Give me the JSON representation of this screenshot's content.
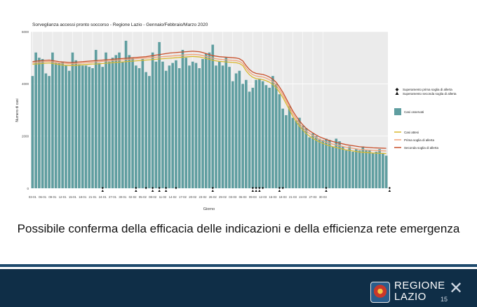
{
  "chart_data": {
    "type": "bar",
    "title": "Sorveglianza accessi pronto soccorso - Regione Lazio - Gennaio/Febbraio/Marzo 2020",
    "xlabel": "Giorno",
    "ylabel": "Numero di casi",
    "ylim": [
      0,
      6000
    ],
    "yticks": [
      0,
      2000,
      4000,
      6000
    ],
    "grid": true,
    "legend_position": "right",
    "x_start": "2020-01-03",
    "x_tick_labels": [
      "03-01",
      "06-01",
      "09-01",
      "12-01",
      "15-01",
      "18-01",
      "21-01",
      "24-01",
      "27-01",
      "30-01",
      "02-02",
      "05-02",
      "08-02",
      "11-02",
      "14-02",
      "17-02",
      "20-02",
      "23-02",
      "26-02",
      "29-02",
      "03-03",
      "06-03",
      "09-03",
      "12-03",
      "15-03",
      "18-03",
      "21-03",
      "24-03",
      "27-03",
      "30-03"
    ],
    "series": [
      {
        "name": "Casi osservati",
        "kind": "bar",
        "color": "#5f9ea0",
        "values": [
          4300,
          5200,
          5000,
          4950,
          4400,
          4300,
          5200,
          4800,
          4800,
          4850,
          4700,
          4500,
          5200,
          4900,
          4750,
          4700,
          4700,
          4650,
          4600,
          5300,
          4800,
          4650,
          5200,
          4850,
          5000,
          5100,
          5200,
          4850,
          5650,
          5100,
          5000,
          4700,
          4600,
          4950,
          4450,
          4300,
          5200,
          4850,
          5600,
          4850,
          4500,
          4700,
          4800,
          4900,
          4600,
          5300,
          5000,
          4700,
          4850,
          4800,
          4600,
          4950,
          5150,
          5200,
          5500,
          4700,
          4850,
          4700,
          5000,
          4650,
          4100,
          4400,
          4500,
          4000,
          4150,
          3700,
          3850,
          4150,
          4200,
          4100,
          3950,
          3850,
          4300,
          4000,
          3600,
          3050,
          2800,
          3150,
          2700,
          2600,
          2700,
          2400,
          2300,
          1950,
          2100,
          2000,
          1900,
          1850,
          1900,
          1850,
          1600,
          1900,
          1800,
          1600,
          1450,
          1600,
          1400,
          1500,
          1450,
          1600,
          1450,
          1450,
          1350,
          1400,
          1500,
          1350,
          1250
        ]
      },
      {
        "name": "Casi attesi",
        "kind": "line",
        "color": "#d9b82f",
        "values": [
          4750,
          4760,
          4770,
          4780,
          4790,
          4800,
          4780,
          4760,
          4740,
          4720,
          4710,
          4700,
          4700,
          4710,
          4720,
          4730,
          4740,
          4750,
          4760,
          4760,
          4770,
          4780,
          4790,
          4800,
          4810,
          4820,
          4830,
          4840,
          4850,
          4860,
          4870,
          4880,
          4890,
          4900,
          4910,
          4920,
          4930,
          4940,
          4950,
          4960,
          4970,
          4980,
          4990,
          5000,
          5010,
          5020,
          5030,
          5040,
          5050,
          5040,
          5030,
          5000,
          4970,
          4940,
          4900,
          4880,
          4860,
          4850,
          4840,
          4830,
          4820,
          4810,
          4780,
          4700,
          4500,
          4350,
          4250,
          4200,
          4180,
          4160,
          4120,
          4060,
          3980,
          3860,
          3680,
          3480,
          3240,
          3000,
          2760,
          2560,
          2380,
          2230,
          2100,
          2000,
          1920,
          1840,
          1770,
          1720,
          1670,
          1630,
          1590,
          1560,
          1530,
          1500,
          1470,
          1450,
          1430,
          1410,
          1390,
          1380,
          1370,
          1360,
          1350,
          1345,
          1340,
          1335,
          1330
        ]
      },
      {
        "name": "Prima soglia di allerta",
        "kind": "line",
        "color": "#f2a37a",
        "values": [
          4800,
          4820,
          4830,
          4840,
          4850,
          4860,
          4840,
          4820,
          4800,
          4790,
          4780,
          4770,
          4770,
          4780,
          4790,
          4800,
          4810,
          4820,
          4830,
          4840,
          4850,
          4860,
          4870,
          4880,
          4890,
          4900,
          4910,
          4920,
          4930,
          4940,
          4950,
          4960,
          4970,
          4980,
          4990,
          5000,
          5010,
          5020,
          5030,
          5040,
          5050,
          5060,
          5070,
          5080,
          5090,
          5100,
          5110,
          5120,
          5130,
          5120,
          5110,
          5080,
          5050,
          5020,
          4980,
          4960,
          4940,
          4930,
          4920,
          4910,
          4900,
          4890,
          4860,
          4780,
          4600,
          4450,
          4350,
          4300,
          4280,
          4260,
          4220,
          4160,
          4080,
          3960,
          3780,
          3580,
          3340,
          3100,
          2860,
          2660,
          2480,
          2330,
          2200,
          2100,
          2020,
          1940,
          1870,
          1820,
          1770,
          1730,
          1690,
          1660,
          1630,
          1600,
          1570,
          1550,
          1530,
          1510,
          1490,
          1480,
          1470,
          1460,
          1450,
          1445,
          1440,
          1435,
          1430
        ]
      },
      {
        "name": "Seconda soglia di allerta",
        "kind": "line",
        "color": "#c9502b",
        "values": [
          4850,
          4870,
          4880,
          4890,
          4900,
          4910,
          4890,
          4870,
          4850,
          4840,
          4830,
          4820,
          4820,
          4830,
          4840,
          4850,
          4860,
          4870,
          4880,
          4890,
          4900,
          4910,
          4920,
          4930,
          4940,
          4950,
          4960,
          4970,
          4980,
          4990,
          5000,
          5010,
          5020,
          5030,
          5040,
          5060,
          5080,
          5100,
          5120,
          5140,
          5160,
          5180,
          5190,
          5200,
          5210,
          5220,
          5230,
          5240,
          5250,
          5240,
          5230,
          5200,
          5160,
          5120,
          5080,
          5060,
          5040,
          5030,
          5020,
          5010,
          5000,
          4990,
          4960,
          4880,
          4700,
          4550,
          4450,
          4400,
          4380,
          4360,
          4320,
          4260,
          4180,
          4060,
          3880,
          3680,
          3440,
          3200,
          2960,
          2760,
          2580,
          2430,
          2300,
          2200,
          2120,
          2040,
          1970,
          1920,
          1870,
          1830,
          1790,
          1760,
          1730,
          1700,
          1670,
          1650,
          1630,
          1610,
          1590,
          1580,
          1570,
          1560,
          1550,
          1545,
          1540,
          1535,
          1530
        ]
      }
    ],
    "alerts": {
      "first": {
        "name": "Superamento prima soglia di allerta",
        "marker": "diamond",
        "days": [
          21,
          31,
          34,
          36,
          38,
          40,
          43,
          54,
          66,
          67,
          68,
          69,
          74,
          75,
          88,
          107
        ]
      },
      "second": {
        "name": "Superamento seconda soglia di allerta",
        "marker": "triangle",
        "days": [
          21,
          31,
          36,
          38,
          40,
          54,
          66,
          67,
          68,
          74,
          88,
          107
        ]
      }
    }
  },
  "caption": "Possibile conferma della efficacia delle indicazioni e della efficienza rete emergenza",
  "footer": {
    "logo_line1": "REGIONE",
    "logo_line2": "LAZIO",
    "page_number": "15"
  }
}
